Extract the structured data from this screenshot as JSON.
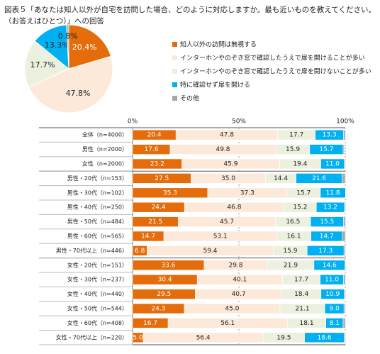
{
  "chart_data": [
    {
      "type": "pie",
      "title": "図表５「あなたは知人以外が自宅を訪問した場合、どのように対応しますか。最も近いものを教えてください。（お答えはひとつ）」への回答",
      "categories": [
        "知人以外の訪問は無視する",
        "インターホンやのぞき窓で確認したうえで扉を開けることが多い",
        "インターホンやのぞき窓で確認したうえで扉を開けないことが多い",
        "特に確認せず扉を開ける",
        "その他"
      ],
      "values": [
        20.4,
        47.8,
        17.7,
        13.3,
        0.8
      ],
      "value_labels": [
        "20.4%",
        "47.8%",
        "17.7%",
        "13.3%",
        "0.8%"
      ],
      "colors": [
        "#e46c0a",
        "#fde9d9",
        "#ebf1de",
        "#00b0f0",
        "#a6a6a6"
      ],
      "legend": "right"
    },
    {
      "type": "stacked-bar",
      "categories": [
        "全体（n=4000）",
        "男性（n=2000）",
        "女性（n=2000）",
        "男性・20代（n=153）",
        "男性・30代（n=102）",
        "男性・40代（n=250）",
        "男性・50代（n=484）",
        "男性・60代（n=565）",
        "男性・70代以上（n=446）",
        "女性・20代（n=151）",
        "女性・30代（n=237）",
        "女性・40代（n=440）",
        "女性・50代（n=544）",
        "女性・60代（n=408）",
        "女性・70代以上（n=220）"
      ],
      "series": [
        {
          "name": "知人以外の訪問は無視する",
          "color": "#e46c0a",
          "values": [
            20.4,
            17.6,
            23.2,
            27.5,
            35.3,
            24.4,
            21.5,
            14.7,
            6.8,
            33.6,
            30.4,
            29.5,
            24.3,
            16.7,
            5.0
          ],
          "value_labels": [
            "20.4",
            "17.6",
            "23.2",
            "27.5",
            "35.3",
            "24.4",
            "21.5",
            "14.7",
            "6.8",
            "33.6",
            "30.4",
            "29.5",
            "24.3",
            "16.7",
            "5.0"
          ]
        },
        {
          "name": "インターホンやのぞき窓で確認したうえで扉を開けることが多い",
          "color": "#fde9d9",
          "values": [
            47.8,
            49.8,
            45.9,
            35.0,
            37.3,
            46.8,
            45.7,
            53.1,
            59.4,
            29.8,
            40.1,
            40.7,
            45.0,
            56.1,
            56.4
          ],
          "value_labels": [
            "47.8",
            "49.8",
            "45.9",
            "35.0",
            "37.3",
            "46.8",
            "45.7",
            "53.1",
            "59.4",
            "29.8",
            "40.1",
            "40.7",
            "45.0",
            "56.1",
            "56.4"
          ]
        },
        {
          "name": "インターホンやのぞき窓で確認したうえで扉を開けないことが多い",
          "color": "#ebf1de",
          "values": [
            17.7,
            15.9,
            19.4,
            14.4,
            15.7,
            15.2,
            16.5,
            16.1,
            15.9,
            21.9,
            17.7,
            18.4,
            21.1,
            18.1,
            19.5
          ],
          "value_labels": [
            "17.7",
            "15.9",
            "19.4",
            "14.4",
            "15.7",
            "15.2",
            "16.5",
            "16.1",
            "15.9",
            "21.9",
            "17.7",
            "18.4",
            "21.1",
            "18.1",
            "19.5"
          ]
        },
        {
          "name": "特に確認せず扉を開ける",
          "color": "#00b0f0",
          "values": [
            13.3,
            15.7,
            11.0,
            21.6,
            11.8,
            13.2,
            15.5,
            14.7,
            17.3,
            14.6,
            11.0,
            10.9,
            9.0,
            8.1,
            18.6
          ],
          "value_labels": [
            "13.3",
            "15.7",
            "11.0",
            "21.6",
            "11.8",
            "13.2",
            "15.5",
            "14.7",
            "17.3",
            "14.6",
            "11.0",
            "10.9",
            "9.0",
            "8.1",
            "18.6"
          ]
        },
        {
          "name": "その他",
          "color": "#a6a6a6",
          "values": [
            0.8,
            0.5,
            0.5,
            1.5,
            0,
            0.4,
            0.8,
            1.4,
            0.6,
            0.1,
            0.8,
            0.5,
            0.6,
            1.0,
            0.5
          ]
        }
      ],
      "xlim": [
        0,
        100
      ],
      "xticks": [
        {
          "value": 0,
          "label": "0%"
        },
        {
          "value": 50,
          "label": "50%"
        },
        {
          "value": 100,
          "label": "100%"
        }
      ],
      "grid": true,
      "group_breaks": [
        3,
        9
      ]
    }
  ]
}
